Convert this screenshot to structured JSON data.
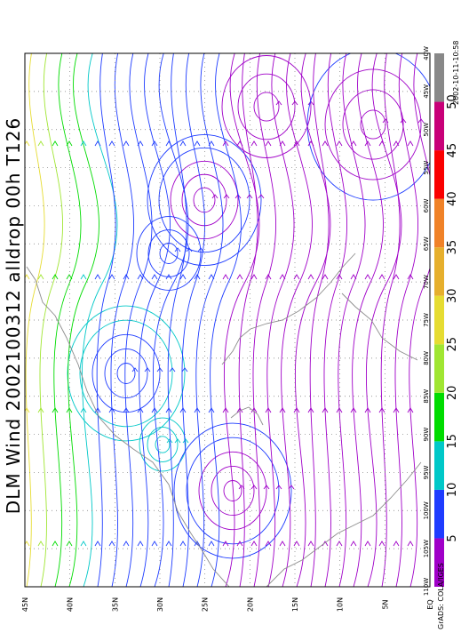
{
  "title": "DLM Wind 2002100312 alldrop 00h T126",
  "footer": "GrADS: COLA/IGES",
  "timestamp": "2002-10-11-10:58",
  "lat_labels": [
    "EQ",
    "5N",
    "10N",
    "15N",
    "20N",
    "25N",
    "30N",
    "35N",
    "40N",
    "45N"
  ],
  "lon_labels": [
    "110W",
    "105W",
    "100W",
    "95W",
    "90W",
    "85W",
    "80W",
    "75W",
    "70W",
    "65W",
    "60W",
    "55W",
    "50W",
    "45W",
    "40W"
  ],
  "colorbar": {
    "labels": [
      "5",
      "10",
      "15",
      "20",
      "25",
      "30",
      "35",
      "40",
      "45",
      "50"
    ],
    "colors": [
      "#a000c8",
      "#1e3cff",
      "#00c8c8",
      "#00dc00",
      "#a0e632",
      "#e6dc32",
      "#e6af2d",
      "#f08228",
      "#fa0000",
      "#c80078",
      "#888888"
    ]
  },
  "map_colors": {
    "grid": "#777777",
    "coast": "#8c8c8c"
  }
}
